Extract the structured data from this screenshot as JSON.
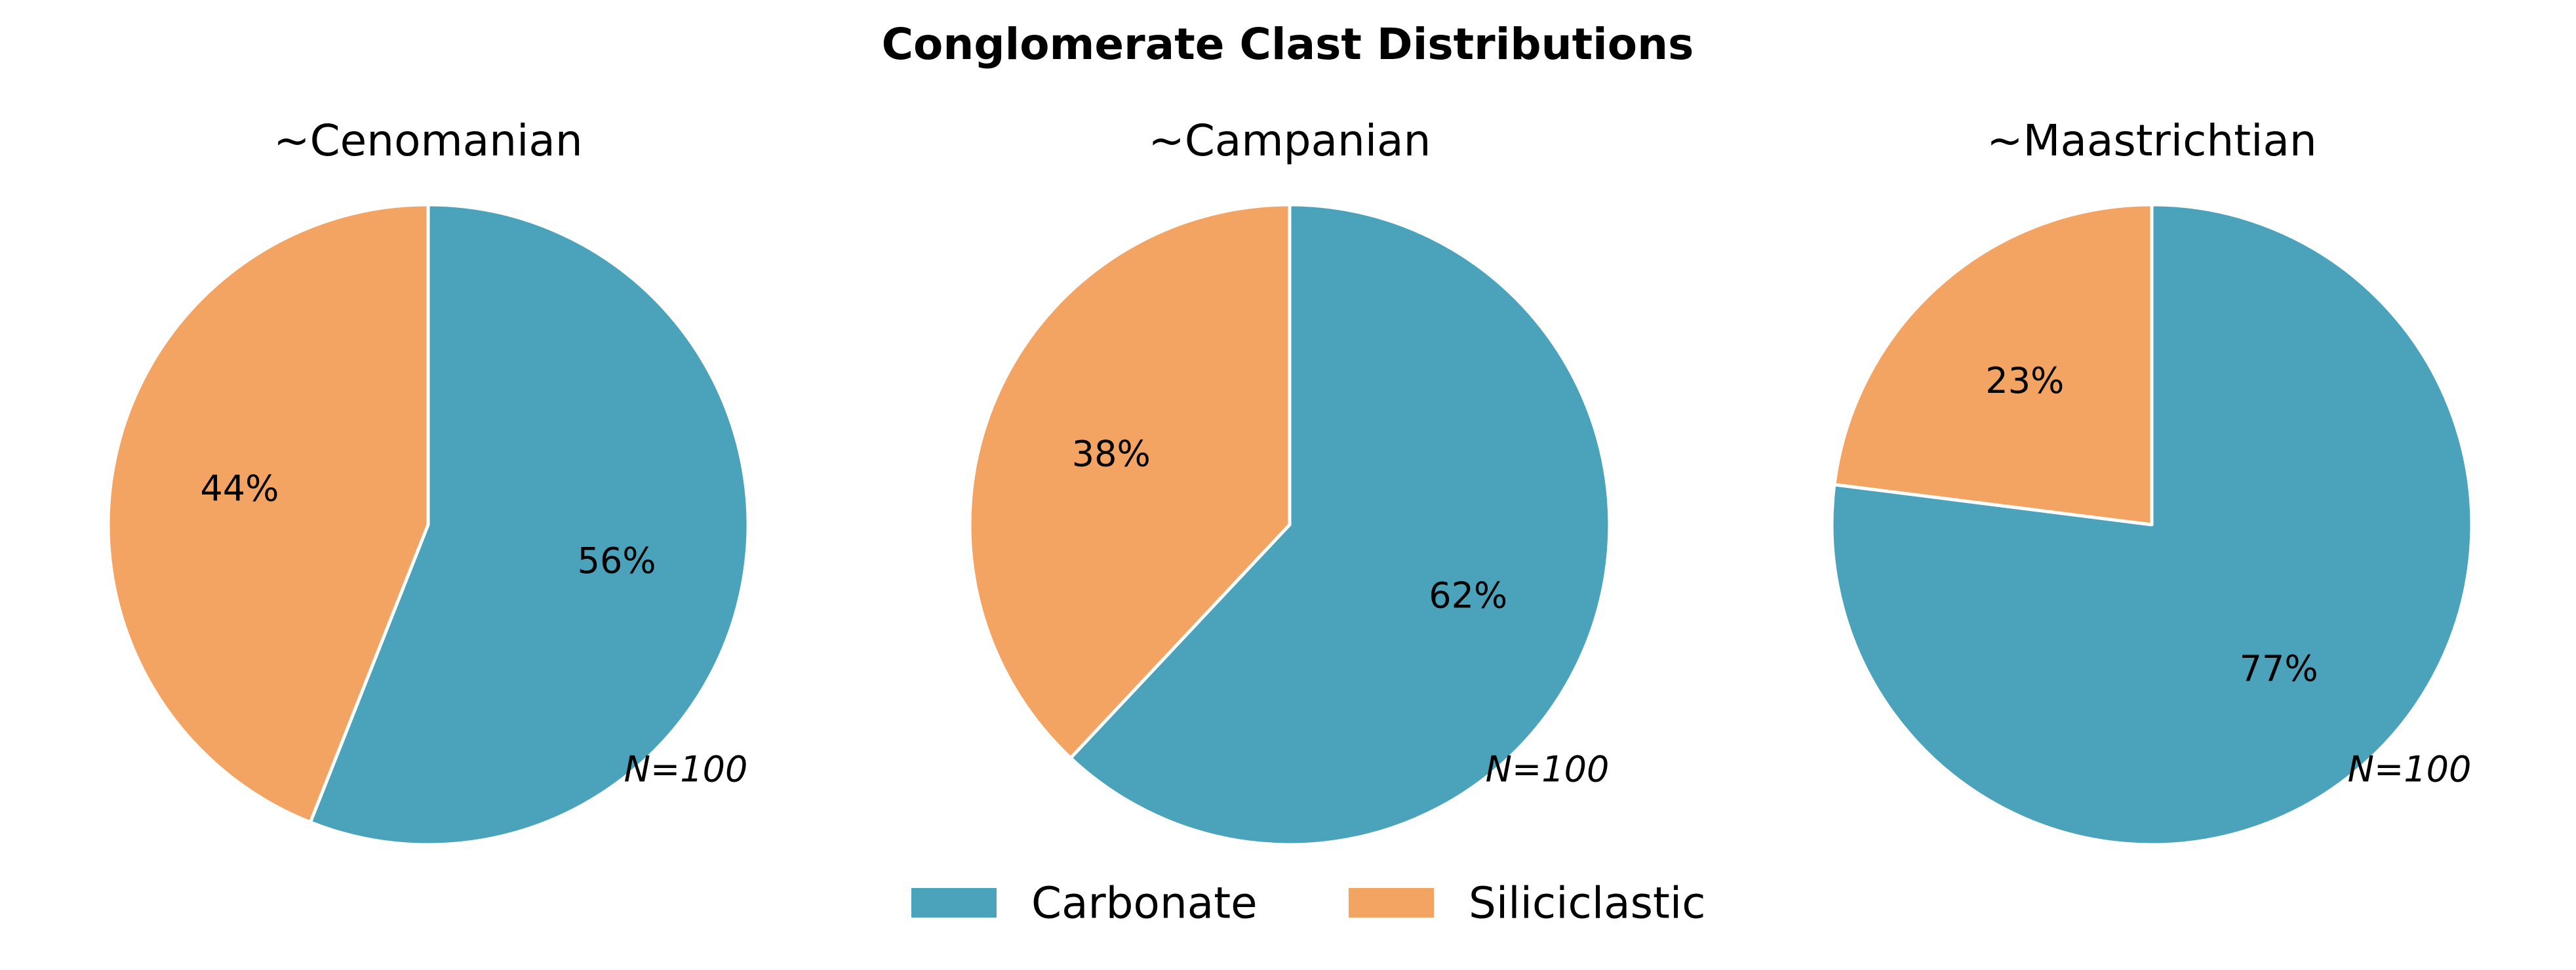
{
  "chart_data": {
    "type": "pie",
    "title": "Conglomerate Clast Distributions",
    "categories": [
      "Carbonate",
      "Siliciclastic"
    ],
    "colors": {
      "Carbonate": "#4aa3bb",
      "Siliciclastic": "#f4a462"
    },
    "pies": [
      {
        "title": "~Cenomanian",
        "sample_label": "N=100",
        "values": {
          "Carbonate": 56,
          "Siliciclastic": 44
        },
        "value_labels": {
          "Carbonate": "56%",
          "Siliciclastic": "44%"
        }
      },
      {
        "title": "~Campanian",
        "sample_label": "N=100",
        "values": {
          "Carbonate": 62,
          "Siliciclastic": 38
        },
        "value_labels": {
          "Carbonate": "62%",
          "Siliciclastic": "38%"
        }
      },
      {
        "title": "~Maastrichtian",
        "sample_label": "N=100",
        "values": {
          "Carbonate": 77,
          "Siliciclastic": 23
        },
        "value_labels": {
          "Carbonate": "77%",
          "Siliciclastic": "23%"
        }
      }
    ],
    "start_angle": "12 o'clock",
    "direction": "clockwise",
    "legend": {
      "position": "bottom-center",
      "entries": [
        "Carbonate",
        "Siliciclastic"
      ]
    }
  }
}
